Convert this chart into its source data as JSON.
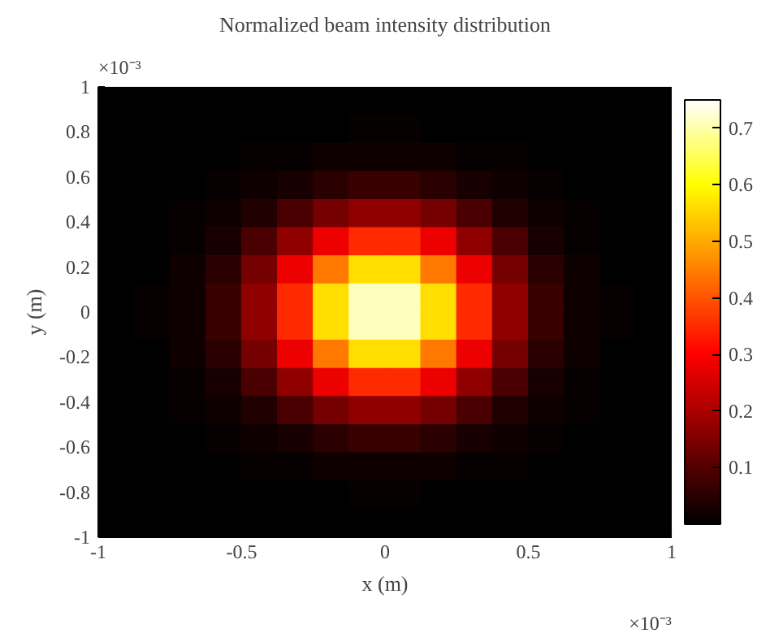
{
  "chart_data": {
    "type": "heatmap",
    "title": "Normalized beam intensity distribution",
    "xlabel": "x (m)",
    "ylabel": "y (m)",
    "annotations": [
      "×10⁻³",
      "×10⁻³"
    ],
    "x": [
      -0.9375,
      -0.8125,
      -0.6875,
      -0.5625,
      -0.4375,
      -0.3125,
      -0.1875,
      -0.0625,
      0.0625,
      0.1875,
      0.3125,
      0.4375,
      0.5625,
      0.6875,
      0.8125,
      0.9375
    ],
    "y": [
      0.9375,
      0.8125,
      0.6875,
      0.5625,
      0.4375,
      0.3125,
      0.1875,
      0.0625,
      -0.0625,
      -0.1875,
      -0.3125,
      -0.4375,
      -0.5625,
      -0.6875,
      -0.8125,
      -0.9375
    ],
    "xlim": [
      -1,
      1
    ],
    "ylim": [
      -1,
      1
    ],
    "xticks": [
      -1,
      -0.5,
      0,
      0.5,
      1
    ],
    "yticks": [
      -1,
      -0.8,
      -0.6,
      -0.4,
      -0.2,
      0,
      0.2,
      0.4,
      0.6,
      0.8,
      1
    ],
    "clim": [
      0,
      0.75
    ],
    "cticks": [
      0.1,
      0.2,
      0.3,
      0.4,
      0.5,
      0.6,
      0.7
    ],
    "cells": [
      [
        0,
        0,
        0,
        0,
        0,
        0,
        0,
        0,
        0,
        0,
        0,
        0,
        0,
        0,
        0,
        0
      ],
      [
        0,
        0,
        0,
        0,
        0,
        0,
        0,
        0.01,
        0.01,
        0,
        0,
        0,
        0,
        0,
        0,
        0
      ],
      [
        0,
        0,
        0,
        0,
        0.01,
        0.01,
        0.02,
        0.02,
        0.02,
        0.02,
        0.01,
        0.01,
        0,
        0,
        0,
        0
      ],
      [
        0,
        0,
        0,
        0.01,
        0.02,
        0.03,
        0.05,
        0.07,
        0.07,
        0.05,
        0.03,
        0.02,
        0.01,
        0,
        0,
        0
      ],
      [
        0,
        0,
        0.01,
        0.02,
        0.04,
        0.09,
        0.14,
        0.17,
        0.17,
        0.14,
        0.09,
        0.04,
        0.02,
        0.01,
        0,
        0
      ],
      [
        0,
        0,
        0.01,
        0.03,
        0.09,
        0.17,
        0.28,
        0.35,
        0.35,
        0.28,
        0.17,
        0.09,
        0.03,
        0.01,
        0,
        0
      ],
      [
        0,
        0,
        0.02,
        0.05,
        0.14,
        0.28,
        0.44,
        0.56,
        0.56,
        0.44,
        0.28,
        0.14,
        0.05,
        0.02,
        0,
        0
      ],
      [
        0,
        0.01,
        0.02,
        0.07,
        0.17,
        0.35,
        0.56,
        0.71,
        0.71,
        0.56,
        0.35,
        0.17,
        0.07,
        0.02,
        0.01,
        0
      ],
      [
        0,
        0.01,
        0.02,
        0.07,
        0.17,
        0.35,
        0.56,
        0.71,
        0.71,
        0.56,
        0.35,
        0.17,
        0.07,
        0.02,
        0.01,
        0
      ],
      [
        0,
        0,
        0.02,
        0.05,
        0.14,
        0.28,
        0.44,
        0.56,
        0.56,
        0.44,
        0.28,
        0.14,
        0.05,
        0.02,
        0,
        0
      ],
      [
        0,
        0,
        0.01,
        0.03,
        0.09,
        0.17,
        0.28,
        0.35,
        0.35,
        0.28,
        0.17,
        0.09,
        0.03,
        0.01,
        0,
        0
      ],
      [
        0,
        0,
        0.01,
        0.02,
        0.04,
        0.09,
        0.14,
        0.17,
        0.17,
        0.14,
        0.09,
        0.04,
        0.02,
        0.01,
        0,
        0
      ],
      [
        0,
        0,
        0,
        0.01,
        0.02,
        0.03,
        0.05,
        0.07,
        0.07,
        0.05,
        0.03,
        0.02,
        0.01,
        0,
        0,
        0
      ],
      [
        0,
        0,
        0,
        0,
        0.01,
        0.01,
        0.02,
        0.02,
        0.02,
        0.02,
        0.01,
        0.01,
        0,
        0,
        0,
        0
      ],
      [
        0,
        0,
        0,
        0,
        0,
        0,
        0,
        0.01,
        0.01,
        0,
        0,
        0,
        0,
        0,
        0,
        0
      ],
      [
        0,
        0,
        0,
        0,
        0,
        0,
        0,
        0,
        0,
        0,
        0,
        0,
        0,
        0,
        0,
        0
      ]
    ]
  }
}
